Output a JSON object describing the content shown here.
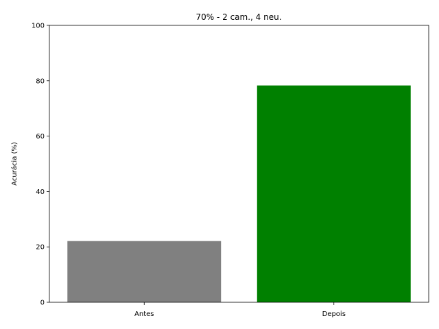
{
  "chart_data": {
    "type": "bar",
    "title": "70% - 2 cam., 4 neu.",
    "xlabel": "",
    "ylabel": "Acurácia (%)",
    "categories": [
      "Antes",
      "Depois"
    ],
    "values": [
      22.1,
      78.3
    ],
    "colors": [
      "#808080",
      "#008000"
    ],
    "ylim": [
      0,
      100
    ],
    "yticks": [
      0,
      20,
      40,
      60,
      80,
      100
    ],
    "grid": false,
    "legend": "none"
  }
}
